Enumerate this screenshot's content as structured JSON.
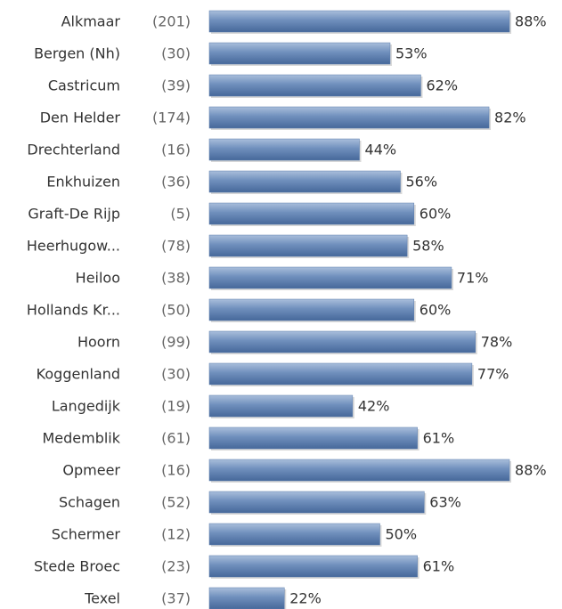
{
  "chart_data": {
    "type": "hbar",
    "categories": [
      "Alkmaar",
      "Bergen (Nh)",
      "Castricum",
      "Den Helder",
      "Drechterland",
      "Enkhuizen",
      "Graft-De Rijp",
      "Heerhugow...",
      "Heiloo",
      "Hollands Kr...",
      "Hoorn",
      "Koggenland",
      "Langedijk",
      "Medemblik",
      "Opmeer",
      "Schagen",
      "Schermer",
      "Stede Broec",
      "Texel"
    ],
    "counts": [
      "(201)",
      "(30)",
      "(39)",
      "(174)",
      "(16)",
      "(36)",
      "(5)",
      "(78)",
      "(38)",
      "(50)",
      "(99)",
      "(30)",
      "(19)",
      "(61)",
      "(16)",
      "(52)",
      "(12)",
      "(23)",
      "(37)"
    ],
    "values": [
      88,
      53,
      62,
      82,
      44,
      56,
      60,
      58,
      71,
      60,
      78,
      77,
      42,
      61,
      88,
      63,
      50,
      61,
      22
    ],
    "value_labels": [
      "88%",
      "53%",
      "62%",
      "82%",
      "44%",
      "56%",
      "60%",
      "58%",
      "71%",
      "60%",
      "78%",
      "77%",
      "42%",
      "61%",
      "88%",
      "63%",
      "50%",
      "61%",
      "22%"
    ],
    "color": "#5a7cac"
  }
}
